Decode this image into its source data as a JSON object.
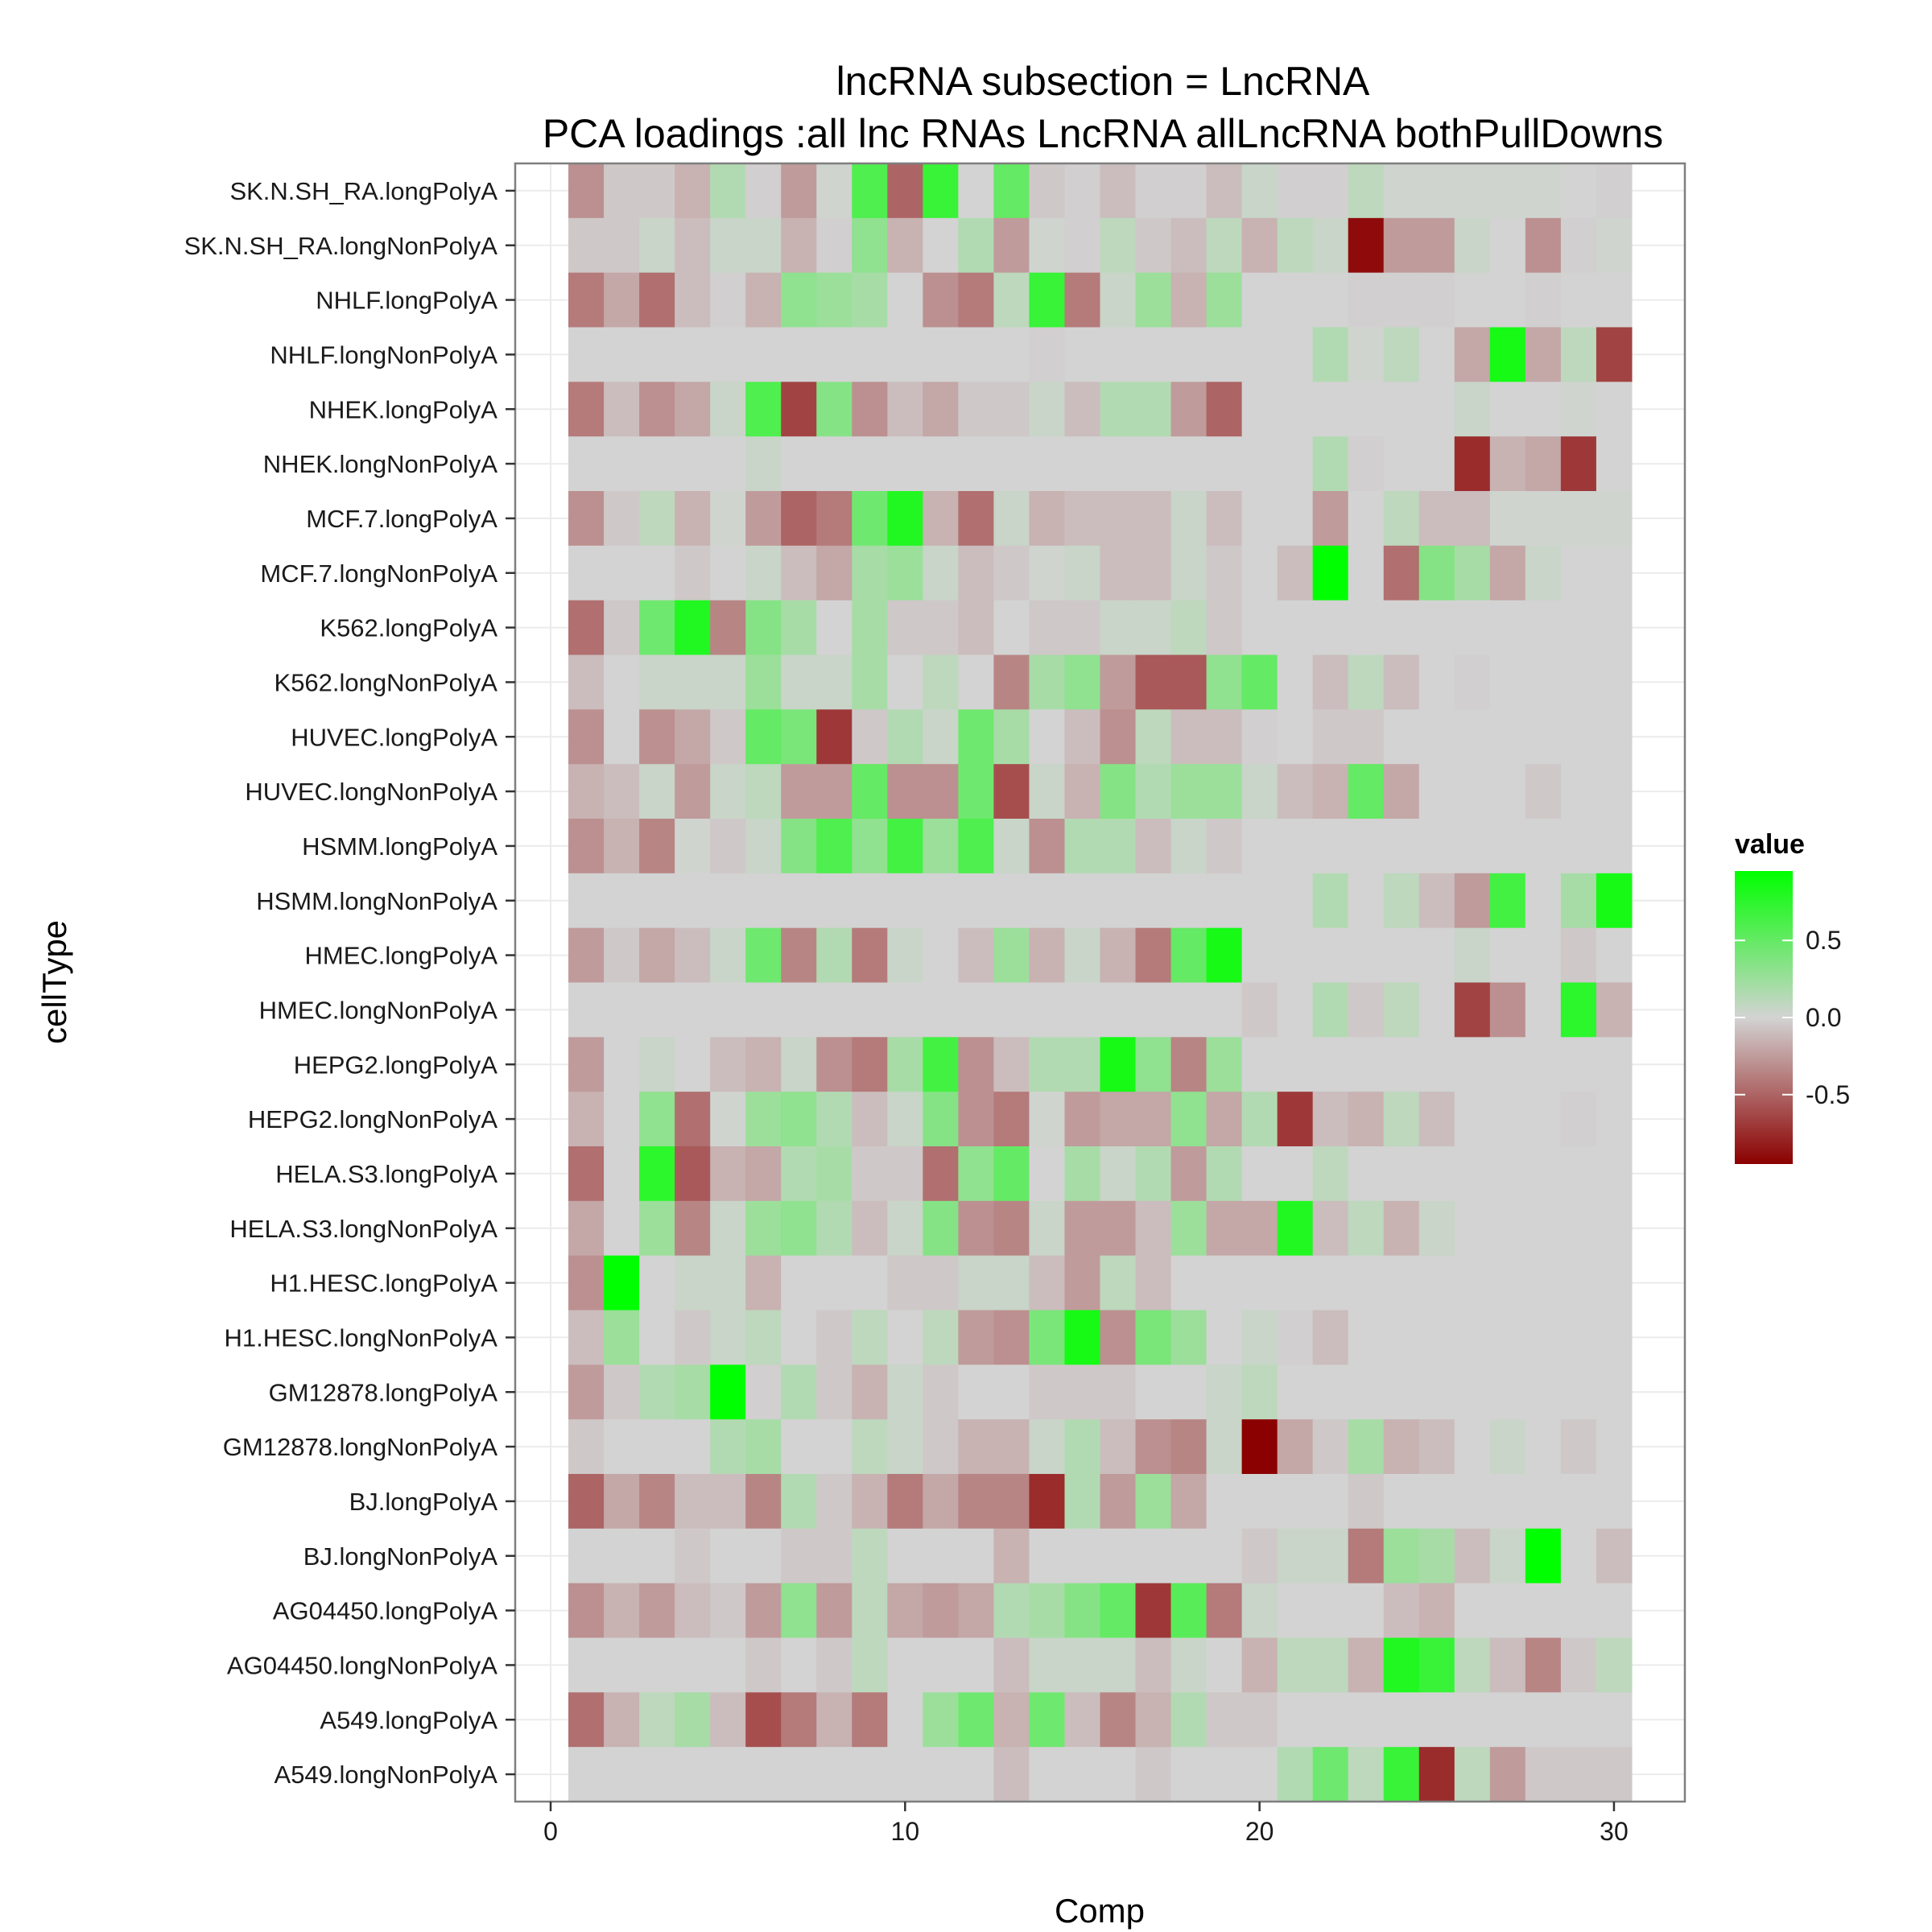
{
  "chart_data": {
    "type": "heatmap",
    "title": [
      "lncRNA subsection =  LncRNA",
      "PCA loadings :all lnc RNAs LncRNA allLncRNA bothPullDowns"
    ],
    "xlabel": "Comp",
    "ylabel": "cellType",
    "xlim": [
      -1,
      32
    ],
    "xticks": [
      0,
      10,
      20,
      30
    ],
    "x": [
      1,
      2,
      3,
      4,
      5,
      6,
      7,
      8,
      9,
      10,
      11,
      12,
      13,
      14,
      15,
      16,
      17,
      18,
      19,
      20,
      21,
      22,
      23,
      24,
      25,
      26,
      27,
      28,
      29,
      30
    ],
    "rows": [
      "SK.N.SH_RA.longPolyA",
      "SK.N.SH_RA.longNonPolyA",
      "NHLF.longPolyA",
      "NHLF.longNonPolyA",
      "NHEK.longPolyA",
      "NHEK.longNonPolyA",
      "MCF.7.longPolyA",
      "MCF.7.longNonPolyA",
      "K562.longPolyA",
      "K562.longNonPolyA",
      "HUVEC.longPolyA",
      "HUVEC.longNonPolyA",
      "HSMM.longPolyA",
      "HSMM.longNonPolyA",
      "HMEC.longPolyA",
      "HMEC.longNonPolyA",
      "HEPG2.longPolyA",
      "HEPG2.longNonPolyA",
      "HELA.S3.longPolyA",
      "HELA.S3.longNonPolyA",
      "H1.HESC.longPolyA",
      "H1.HESC.longNonPolyA",
      "GM12878.longPolyA",
      "GM12878.longNonPolyA",
      "BJ.longPolyA",
      "BJ.longNonPolyA",
      "AG04450.longPolyA",
      "AG04450.longNonPolyA",
      "A549.longPolyA",
      "A549.longNonPolyA"
    ],
    "values": [
      [
        -0.3,
        -0.05,
        -0.05,
        -0.15,
        0.15,
        -0.02,
        -0.25,
        0.02,
        0.6,
        -0.5,
        0.7,
        0.0,
        0.5,
        -0.05,
        -0.02,
        -0.1,
        -0.02,
        -0.02,
        -0.1,
        0.05,
        -0.02,
        -0.02,
        0.1,
        0.02,
        0.02,
        0.02,
        0.02,
        0.02,
        0.0,
        -0.02
      ],
      [
        -0.05,
        -0.05,
        0.05,
        -0.1,
        0.05,
        0.05,
        -0.15,
        -0.02,
        0.3,
        -0.15,
        0.0,
        0.15,
        -0.25,
        0.02,
        -0.02,
        0.1,
        -0.05,
        -0.1,
        0.1,
        -0.15,
        0.1,
        0.05,
        -0.9,
        -0.25,
        -0.25,
        0.05,
        0.0,
        -0.3,
        -0.02,
        0.02
      ],
      [
        -0.4,
        -0.2,
        -0.45,
        -0.1,
        -0.02,
        -0.15,
        0.3,
        0.25,
        0.2,
        0.0,
        -0.3,
        -0.4,
        0.1,
        0.7,
        -0.4,
        0.05,
        0.25,
        -0.15,
        0.25,
        0.0,
        0.0,
        0.0,
        -0.02,
        -0.02,
        -0.02,
        0.0,
        0.0,
        -0.02,
        0.0,
        0.0
      ],
      [
        0.0,
        0.0,
        0.0,
        0.0,
        0.0,
        0.0,
        0.0,
        0.0,
        0.0,
        0.0,
        0.0,
        0.0,
        0.0,
        -0.02,
        0.0,
        0.0,
        0.0,
        0.0,
        0.0,
        0.0,
        0.0,
        0.15,
        0.02,
        0.1,
        0.0,
        -0.2,
        0.85,
        -0.2,
        0.1,
        -0.65
      ],
      [
        -0.4,
        -0.1,
        -0.3,
        -0.2,
        0.05,
        0.6,
        -0.65,
        0.35,
        -0.3,
        -0.1,
        -0.2,
        -0.05,
        -0.05,
        0.05,
        -0.1,
        0.15,
        0.15,
        -0.25,
        -0.5,
        0.0,
        0.0,
        0.0,
        0.0,
        0.0,
        0.0,
        0.05,
        0.0,
        0.0,
        0.02,
        0.0
      ],
      [
        0.0,
        0.0,
        0.0,
        0.0,
        0.0,
        0.05,
        0.0,
        0.0,
        0.0,
        0.0,
        0.0,
        0.0,
        0.0,
        0.0,
        0.0,
        0.0,
        0.0,
        0.0,
        0.0,
        0.0,
        0.0,
        0.15,
        -0.02,
        0.0,
        0.0,
        -0.75,
        -0.15,
        -0.2,
        -0.7,
        0.0
      ],
      [
        -0.3,
        -0.05,
        0.1,
        -0.15,
        0.02,
        -0.25,
        -0.5,
        -0.4,
        0.45,
        0.8,
        -0.15,
        -0.45,
        0.05,
        -0.15,
        -0.1,
        -0.1,
        -0.1,
        0.05,
        -0.1,
        0.0,
        0.0,
        -0.25,
        0.0,
        0.1,
        -0.1,
        -0.1,
        0.02,
        0.02,
        0.02,
        0.02
      ],
      [
        0.0,
        0.0,
        0.0,
        -0.05,
        0.0,
        0.05,
        -0.1,
        -0.2,
        0.2,
        0.25,
        0.05,
        -0.1,
        -0.05,
        0.02,
        0.05,
        -0.1,
        -0.1,
        0.05,
        -0.05,
        0.0,
        -0.1,
        0.95,
        0.0,
        -0.45,
        0.35,
        0.2,
        -0.2,
        0.05,
        0.0,
        0.0
      ],
      [
        -0.45,
        -0.05,
        0.45,
        0.8,
        -0.35,
        0.35,
        0.2,
        0.0,
        0.2,
        -0.05,
        -0.05,
        -0.1,
        0.0,
        -0.05,
        -0.05,
        0.05,
        0.05,
        0.1,
        -0.05,
        0.0,
        0.0,
        0.0,
        0.0,
        0.0,
        0.0,
        0.0,
        0.0,
        0.0,
        0.0,
        0.0
      ],
      [
        -0.1,
        0.0,
        0.05,
        0.05,
        0.05,
        0.25,
        0.05,
        0.05,
        0.2,
        0.0,
        0.1,
        0.0,
        -0.35,
        0.2,
        0.3,
        -0.25,
        -0.55,
        -0.55,
        0.3,
        0.5,
        0.0,
        -0.1,
        0.1,
        -0.1,
        0.0,
        -0.02,
        0.0,
        0.0,
        0.0,
        0.0
      ],
      [
        -0.3,
        0.0,
        -0.3,
        -0.2,
        -0.05,
        0.5,
        0.4,
        -0.7,
        -0.05,
        0.15,
        0.05,
        0.45,
        0.2,
        0.0,
        -0.1,
        -0.3,
        0.1,
        -0.1,
        -0.1,
        -0.02,
        0.0,
        -0.05,
        -0.05,
        0.0,
        0.0,
        0.0,
        0.0,
        0.0,
        0.0,
        0.0
      ],
      [
        -0.15,
        -0.1,
        0.05,
        -0.25,
        0.05,
        0.1,
        -0.25,
        -0.25,
        0.5,
        -0.3,
        -0.3,
        0.45,
        -0.6,
        0.05,
        -0.15,
        0.35,
        0.15,
        0.25,
        0.25,
        0.05,
        -0.1,
        -0.15,
        0.5,
        -0.2,
        0.0,
        0.0,
        0.0,
        -0.05,
        0.0,
        0.0
      ],
      [
        -0.3,
        -0.15,
        -0.35,
        0.02,
        -0.05,
        0.05,
        0.35,
        0.6,
        0.3,
        0.65,
        0.25,
        0.6,
        0.05,
        -0.3,
        0.15,
        0.15,
        -0.1,
        0.05,
        -0.05,
        0.0,
        0.0,
        0.0,
        0.0,
        0.0,
        0.0,
        0.0,
        0.0,
        0.0,
        0.0,
        0.0
      ],
      [
        0.0,
        0.0,
        0.0,
        0.0,
        0.0,
        0.0,
        0.0,
        0.0,
        0.0,
        0.0,
        0.0,
        0.0,
        0.0,
        0.0,
        0.0,
        0.0,
        0.0,
        0.0,
        0.0,
        0.0,
        0.0,
        0.15,
        0.0,
        0.1,
        -0.1,
        -0.25,
        0.65,
        0.0,
        0.2,
        0.85
      ],
      [
        -0.25,
        -0.05,
        -0.2,
        -0.1,
        0.05,
        0.45,
        -0.35,
        0.15,
        -0.4,
        0.05,
        0.0,
        -0.1,
        0.25,
        -0.15,
        0.05,
        -0.15,
        -0.4,
        0.5,
        0.85,
        0.0,
        0.0,
        0.0,
        0.0,
        0.0,
        0.0,
        0.05,
        0.0,
        0.0,
        -0.05,
        0.0
      ],
      [
        0.0,
        0.0,
        0.0,
        0.0,
        0.0,
        0.0,
        0.0,
        0.0,
        0.0,
        0.0,
        0.0,
        0.0,
        0.0,
        0.0,
        0.0,
        0.0,
        0.0,
        0.0,
        0.0,
        -0.05,
        0.0,
        0.15,
        -0.05,
        0.1,
        0.0,
        -0.65,
        -0.3,
        0.0,
        0.75,
        -0.15
      ],
      [
        -0.25,
        0.0,
        0.05,
        0.0,
        -0.1,
        -0.15,
        0.05,
        -0.3,
        -0.4,
        0.2,
        0.65,
        -0.3,
        -0.1,
        0.15,
        0.15,
        0.85,
        0.3,
        -0.35,
        0.25,
        0.0,
        0.0,
        0.0,
        0.0,
        0.0,
        0.0,
        0.0,
        0.0,
        0.0,
        0.0,
        0.0
      ],
      [
        -0.15,
        0.0,
        0.3,
        -0.45,
        0.02,
        0.25,
        0.3,
        0.15,
        -0.1,
        0.05,
        0.35,
        -0.3,
        -0.4,
        0.02,
        -0.25,
        -0.2,
        -0.2,
        0.3,
        -0.2,
        0.15,
        -0.7,
        -0.1,
        -0.15,
        0.1,
        -0.1,
        0.0,
        0.0,
        0.0,
        -0.02,
        0.0
      ],
      [
        -0.45,
        0.0,
        0.75,
        -0.55,
        -0.15,
        -0.2,
        0.15,
        0.2,
        -0.05,
        -0.05,
        -0.45,
        0.3,
        0.5,
        0.0,
        0.2,
        0.05,
        0.15,
        -0.25,
        0.15,
        0.0,
        0.0,
        0.1,
        0.0,
        0.0,
        0.0,
        0.0,
        0.0,
        0.0,
        0.0,
        0.0
      ],
      [
        -0.2,
        0.0,
        0.25,
        -0.35,
        0.05,
        0.25,
        0.3,
        0.15,
        -0.1,
        0.05,
        0.35,
        -0.3,
        -0.35,
        0.05,
        -0.25,
        -0.25,
        -0.1,
        0.25,
        -0.2,
        -0.2,
        0.8,
        -0.1,
        0.1,
        -0.15,
        0.05,
        0.0,
        0.0,
        0.0,
        0.0,
        0.0
      ],
      [
        -0.3,
        0.95,
        0.0,
        0.05,
        0.05,
        -0.15,
        0.0,
        0.0,
        0.0,
        -0.05,
        -0.05,
        0.05,
        0.05,
        -0.1,
        -0.25,
        0.1,
        -0.1,
        0.0,
        0.0,
        0.0,
        0.0,
        0.0,
        0.0,
        0.0,
        0.0,
        0.0,
        0.0,
        0.0,
        0.0,
        0.0
      ],
      [
        -0.1,
        0.25,
        0.0,
        -0.05,
        0.05,
        0.1,
        0.0,
        -0.05,
        0.1,
        0.0,
        0.1,
        -0.25,
        -0.3,
        0.4,
        0.85,
        -0.3,
        0.4,
        0.25,
        0.0,
        0.05,
        -0.02,
        -0.1,
        0.0,
        0.0,
        0.0,
        0.0,
        0.0,
        0.0,
        0.0,
        0.0
      ],
      [
        -0.25,
        -0.05,
        0.15,
        0.2,
        0.95,
        -0.02,
        0.15,
        -0.05,
        -0.15,
        0.05,
        -0.05,
        0.0,
        0.0,
        -0.05,
        -0.05,
        -0.05,
        0.0,
        0.0,
        0.05,
        0.1,
        0.0,
        0.0,
        0.0,
        0.0,
        0.0,
        0.0,
        0.0,
        0.0,
        0.0,
        0.0
      ],
      [
        -0.05,
        0.0,
        0.0,
        0.0,
        0.15,
        0.2,
        0.0,
        0.0,
        0.1,
        0.05,
        -0.05,
        -0.15,
        -0.15,
        0.05,
        0.15,
        -0.1,
        -0.3,
        -0.35,
        0.05,
        -0.95,
        -0.2,
        -0.05,
        0.2,
        -0.15,
        -0.1,
        0.0,
        0.05,
        0.0,
        -0.05,
        0.0
      ],
      [
        -0.5,
        -0.2,
        -0.35,
        -0.1,
        -0.1,
        -0.35,
        0.15,
        -0.05,
        -0.15,
        -0.4,
        -0.2,
        -0.35,
        -0.35,
        -0.75,
        0.15,
        -0.25,
        0.25,
        -0.2,
        0.0,
        0.0,
        0.0,
        0.0,
        -0.05,
        0.0,
        0.0,
        0.0,
        0.0,
        0.0,
        0.0,
        0.0
      ],
      [
        0.0,
        0.0,
        0.0,
        -0.05,
        0.0,
        0.0,
        -0.05,
        -0.05,
        0.1,
        0.0,
        0.0,
        0.0,
        -0.15,
        0.0,
        0.0,
        0.0,
        0.0,
        0.0,
        0.0,
        -0.05,
        0.05,
        0.05,
        -0.4,
        0.25,
        0.2,
        -0.1,
        0.05,
        0.95,
        0.0,
        -0.1
      ],
      [
        -0.3,
        -0.15,
        -0.25,
        -0.1,
        -0.05,
        -0.25,
        0.3,
        -0.25,
        0.1,
        -0.2,
        -0.25,
        -0.2,
        0.15,
        0.2,
        0.35,
        0.5,
        -0.7,
        0.55,
        -0.4,
        0.05,
        0.0,
        0.0,
        0.0,
        -0.1,
        -0.15,
        0.0,
        0.0,
        0.0,
        0.0,
        0.0
      ],
      [
        0.0,
        0.0,
        0.0,
        0.0,
        0.0,
        -0.05,
        0.0,
        -0.05,
        0.1,
        0.0,
        0.0,
        0.0,
        -0.1,
        0.05,
        0.05,
        0.05,
        -0.1,
        0.05,
        0.0,
        -0.15,
        0.1,
        0.1,
        -0.15,
        0.8,
        0.7,
        0.1,
        -0.1,
        -0.35,
        -0.05,
        0.1
      ],
      [
        -0.45,
        -0.15,
        0.1,
        0.2,
        -0.1,
        -0.6,
        -0.4,
        -0.15,
        -0.4,
        0.0,
        0.25,
        0.45,
        -0.15,
        0.45,
        -0.1,
        -0.35,
        -0.15,
        0.15,
        -0.05,
        -0.05,
        0.0,
        0.0,
        0.0,
        0.0,
        0.0,
        0.0,
        0.0,
        0.0,
        0.0,
        0.0
      ],
      [
        0.0,
        0.0,
        0.0,
        0.0,
        0.0,
        0.0,
        0.0,
        0.0,
        0.0,
        0.0,
        0.0,
        0.0,
        -0.1,
        0.0,
        0.0,
        0.0,
        -0.05,
        0.0,
        0.0,
        0.0,
        0.15,
        0.45,
        0.1,
        0.7,
        -0.75,
        0.1,
        -0.25,
        -0.05,
        -0.05,
        -0.05
      ]
    ],
    "legend": {
      "title": "value",
      "placement": "right",
      "ticks": [
        "0.5",
        "0.0",
        "-0.5"
      ],
      "tick_values": [
        0.5,
        0.0,
        -0.5
      ],
      "range": [
        -0.95,
        0.95
      ],
      "colors": {
        "low": "#8B0000",
        "mid": "#D3D3D3",
        "high": "#00FF00"
      }
    },
    "grid": true,
    "panel_background": "#ffffff",
    "grid_color": "#ebebeb"
  }
}
